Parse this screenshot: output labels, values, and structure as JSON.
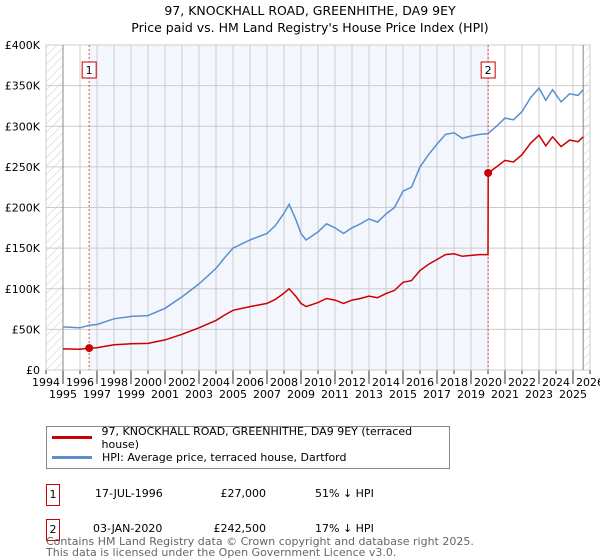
{
  "title": "97, KNOCKHALL ROAD, GREENHITHE, DA9 9EY",
  "subtitle": "Price paid vs. HM Land Registry's House Price Index (HPI)",
  "chart_data": {
    "type": "line",
    "title": "97, KNOCKHALL ROAD, GREENHITHE, DA9 9EY",
    "subtitle": "Price paid vs. HM Land Registry's House Price Index (HPI)",
    "xlim": [
      1994,
      2026
    ],
    "ylim": [
      0,
      400000
    ],
    "x_ticks": [
      "1994",
      "1995",
      "1996",
      "1997",
      "1998",
      "1999",
      "2000",
      "2001",
      "2002",
      "2003",
      "2004",
      "2005",
      "2006",
      "2007",
      "2008",
      "2009",
      "2010",
      "2011",
      "2012",
      "2013",
      "2014",
      "2015",
      "2016",
      "2017",
      "2018",
      "2019",
      "2020",
      "2021",
      "2022",
      "2023",
      "2024",
      "2025",
      "2026"
    ],
    "y_ticks": [
      {
        "v": 0,
        "l": "£0"
      },
      {
        "v": 50000,
        "l": "£50K"
      },
      {
        "v": 100000,
        "l": "£100K"
      },
      {
        "v": 150000,
        "l": "£150K"
      },
      {
        "v": 200000,
        "l": "£200K"
      },
      {
        "v": 250000,
        "l": "£250K"
      },
      {
        "v": 300000,
        "l": "£300K"
      },
      {
        "v": 350000,
        "l": "£350K"
      },
      {
        "v": 400000,
        "l": "£400K"
      }
    ],
    "grid": true,
    "legend_placement": "below",
    "series": [
      {
        "name": "97, KNOCKHALL ROAD, GREENHITHE, DA9 9EY (terraced house)",
        "color": "#cc0000",
        "x": [
          1995,
          1996,
          1996.54,
          1997,
          1998,
          1999,
          2000,
          2001,
          2002,
          2003,
          2004,
          2004.5,
          2005,
          2006,
          2007,
          2007.5,
          2008,
          2008.3,
          2008.7,
          2009,
          2009.3,
          2010,
          2010.5,
          2011,
          2011.5,
          2012,
          2012.5,
          2013,
          2013.5,
          2014,
          2014.5,
          2015,
          2015.5,
          2016,
          2016.5,
          2017,
          2017.5,
          2018,
          2018.5,
          2019,
          2019.5,
          2020.0,
          2020.01,
          2020.5,
          2021,
          2021.5,
          2022,
          2022.5,
          2023,
          2023.4,
          2023.8,
          2024.3,
          2024.8,
          2025.3,
          2025.6
        ],
        "y": [
          26000,
          25500,
          27000,
          27400,
          31000,
          32300,
          32800,
          37000,
          44000,
          52000,
          61000,
          67600,
          73500,
          78000,
          82000,
          87000,
          94600,
          100000,
          90600,
          82000,
          78000,
          83000,
          88000,
          86000,
          82000,
          86000,
          88000,
          91000,
          89000,
          94000,
          98000,
          108000,
          110000,
          122500,
          130000,
          136000,
          142000,
          143000,
          140000,
          141000,
          142000,
          142000,
          242500,
          250000,
          258000,
          256000,
          265000,
          279000,
          289000,
          276000,
          287000,
          275000,
          283000,
          281000,
          287000
        ]
      },
      {
        "name": "HPI: Average price, terraced house, Dartford",
        "color": "#5b8fd0",
        "x": [
          1995,
          1996,
          1996.54,
          1997,
          1998,
          1999,
          2000,
          2001,
          2002,
          2003,
          2004,
          2004.5,
          2005,
          2006,
          2007,
          2007.5,
          2008,
          2008.3,
          2008.7,
          2009,
          2009.3,
          2010,
          2010.5,
          2011,
          2011.5,
          2012,
          2012.5,
          2013,
          2013.5,
          2014,
          2014.5,
          2015,
          2015.5,
          2016,
          2016.5,
          2017,
          2017.5,
          2018,
          2018.5,
          2019,
          2019.5,
          2020.0,
          2020.5,
          2021,
          2021.5,
          2022,
          2022.5,
          2023,
          2023.4,
          2023.8,
          2024.3,
          2024.8,
          2025.3,
          2025.6
        ],
        "y": [
          53000,
          52000,
          55000,
          56000,
          63000,
          66000,
          67000,
          76000,
          90000,
          106000,
          125000,
          138000,
          150000,
          160000,
          168000,
          178000,
          193000,
          204000,
          185000,
          168000,
          160000,
          170000,
          180000,
          175000,
          168000,
          175000,
          180000,
          186000,
          182000,
          192000,
          200000,
          220000,
          225000,
          250000,
          265000,
          278000,
          290000,
          292000,
          285000,
          288000,
          290000,
          291000,
          300000,
          310000,
          308000,
          318000,
          335000,
          347000,
          332000,
          345000,
          330000,
          340000,
          338000,
          345000
        ]
      }
    ],
    "sales": [
      {
        "label": "1",
        "x": 1996.54,
        "y": 27000
      },
      {
        "label": "2",
        "x": 2020.01,
        "y": 242500
      }
    ],
    "data_end": 2025.6
  },
  "legend": [
    {
      "label": "97, KNOCKHALL ROAD, GREENHITHE, DA9 9EY (terraced house)",
      "color": "#cc0000"
    },
    {
      "label": "HPI: Average price, terraced house, Dartford",
      "color": "#5b8fd0"
    }
  ],
  "transactions": [
    {
      "num": "1",
      "date": "17-JUL-1996",
      "price": "£27,000",
      "hpi": "51% ↓ HPI"
    },
    {
      "num": "2",
      "date": "03-JAN-2020",
      "price": "£242,500",
      "hpi": "17% ↓ HPI"
    }
  ],
  "footer": {
    "line1": "Contains HM Land Registry data © Crown copyright and database right 2025.",
    "line2": "This data is licensed under the Open Government Licence v3.0."
  }
}
